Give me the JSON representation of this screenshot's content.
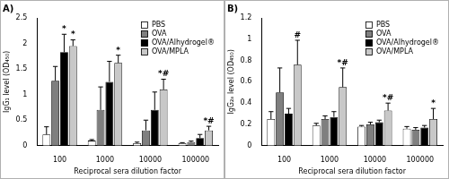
{
  "chart_data": [
    {
      "type": "bar",
      "title": "A)",
      "x_label": "Reciprocal sera dilution factor",
      "y_label": "IgG₁ level (OD₄₅₀)",
      "categories": [
        "100",
        "1000",
        "10000",
        "100000"
      ],
      "ylim": [
        0,
        2.5
      ],
      "yticks": [
        0,
        0.5,
        1,
        1.5,
        2,
        2.5
      ],
      "grid": false,
      "legend": "top right",
      "series": [
        {
          "name": "PBS",
          "color": "#ffffff",
          "values": [
            0.22,
            0.1,
            0.05,
            0.05
          ],
          "errors": [
            0.15,
            0.02,
            0.02,
            0.01
          ],
          "annotations": [
            null,
            null,
            null,
            null
          ]
        },
        {
          "name": "OVA",
          "color": "#7f7f7f",
          "values": [
            1.27,
            0.7,
            0.3,
            0.07
          ],
          "errors": [
            0.28,
            0.45,
            0.2,
            0.02
          ],
          "annotations": [
            null,
            null,
            null,
            null
          ]
        },
        {
          "name": "OVA/Alhydrogel®",
          "color": "#000000",
          "values": [
            1.83,
            1.25,
            0.7,
            0.15
          ],
          "errors": [
            0.35,
            0.4,
            0.35,
            0.07
          ],
          "annotations": [
            "*",
            null,
            null,
            null
          ]
        },
        {
          "name": "OVA/MPLA",
          "color": "#c8c8c8",
          "values": [
            1.95,
            1.62,
            1.1,
            0.3
          ],
          "errors": [
            0.12,
            0.15,
            0.2,
            0.08
          ],
          "annotations": [
            "*",
            "*",
            "*#",
            "*#"
          ]
        }
      ]
    },
    {
      "type": "bar",
      "title": "B)",
      "x_label": "Reciprocal sera dilution factor",
      "y_label": "IgG₂ₐ level (OD₄₅₀)",
      "categories": [
        "100",
        "1000",
        "10000",
        "100000"
      ],
      "ylim": [
        0,
        1.2
      ],
      "yticks": [
        0,
        0.2,
        0.4,
        0.6,
        0.8,
        1,
        1.2
      ],
      "grid": false,
      "legend": "top right",
      "series": [
        {
          "name": "PBS",
          "color": "#ffffff",
          "values": [
            0.25,
            0.19,
            0.18,
            0.16
          ],
          "errors": [
            0.07,
            0.02,
            0.01,
            0.02
          ],
          "annotations": [
            null,
            null,
            null,
            null
          ]
        },
        {
          "name": "OVA",
          "color": "#7f7f7f",
          "values": [
            0.5,
            0.25,
            0.2,
            0.15
          ],
          "errors": [
            0.23,
            0.03,
            0.02,
            0.02
          ],
          "annotations": [
            null,
            null,
            null,
            null
          ]
        },
        {
          "name": "OVA/Alhydrogel®",
          "color": "#000000",
          "values": [
            0.3,
            0.27,
            0.22,
            0.17
          ],
          "errors": [
            0.05,
            0.05,
            0.02,
            0.02
          ],
          "annotations": [
            null,
            null,
            null,
            null
          ]
        },
        {
          "name": "OVA/MPLA",
          "color": "#c8c8c8",
          "values": [
            0.76,
            0.55,
            0.33,
            0.25
          ],
          "errors": [
            0.23,
            0.18,
            0.07,
            0.1
          ],
          "annotations": [
            "#",
            "*#",
            "*#",
            "*"
          ]
        }
      ]
    }
  ]
}
